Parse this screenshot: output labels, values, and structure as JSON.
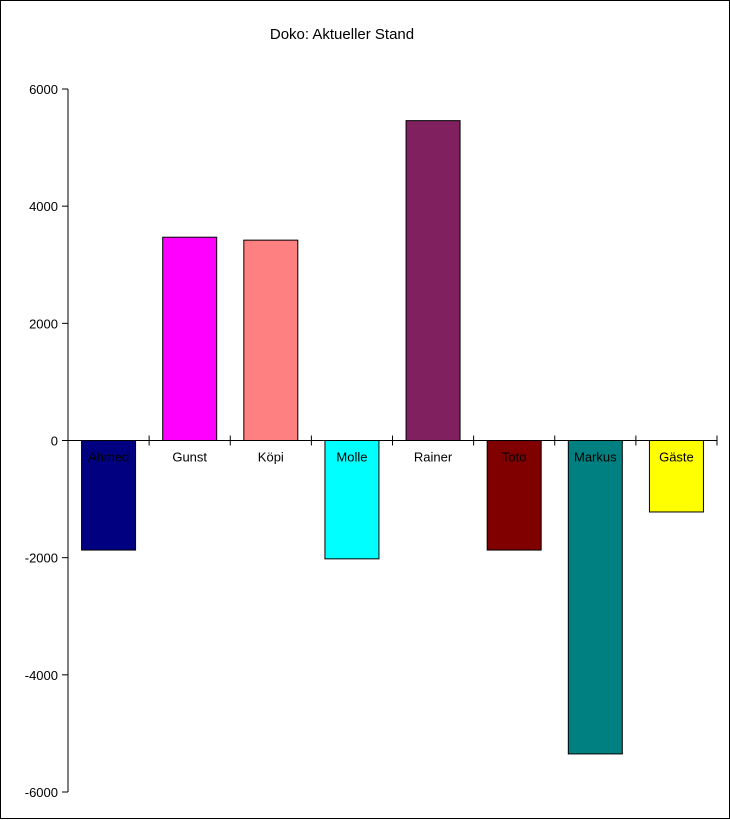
{
  "chart_data": {
    "type": "bar",
    "title": "Doko: Aktueller Stand",
    "xlabel": "",
    "ylabel": "",
    "ylim": [
      -6000,
      6000
    ],
    "yticks": [
      6000,
      4000,
      2000,
      0,
      -2000,
      -4000,
      -6000
    ],
    "ytick_labels": [
      "6000",
      "4000",
      "2000",
      "0",
      "-2000",
      "-4000",
      "-6000"
    ],
    "grid": false,
    "legend": "none",
    "categories": [
      "Ahmed",
      "Gunst",
      "Köpi",
      "Molle",
      "Rainer",
      "Toto",
      "Markus",
      "Gäste"
    ],
    "values": [
      -1870,
      3470,
      3420,
      -2020,
      5460,
      -1870,
      -5350,
      -1220
    ],
    "colors": [
      "#000080",
      "#ff00ff",
      "#ff8080",
      "#00ffff",
      "#80205f",
      "#800000",
      "#008080",
      "#ffff00"
    ]
  }
}
